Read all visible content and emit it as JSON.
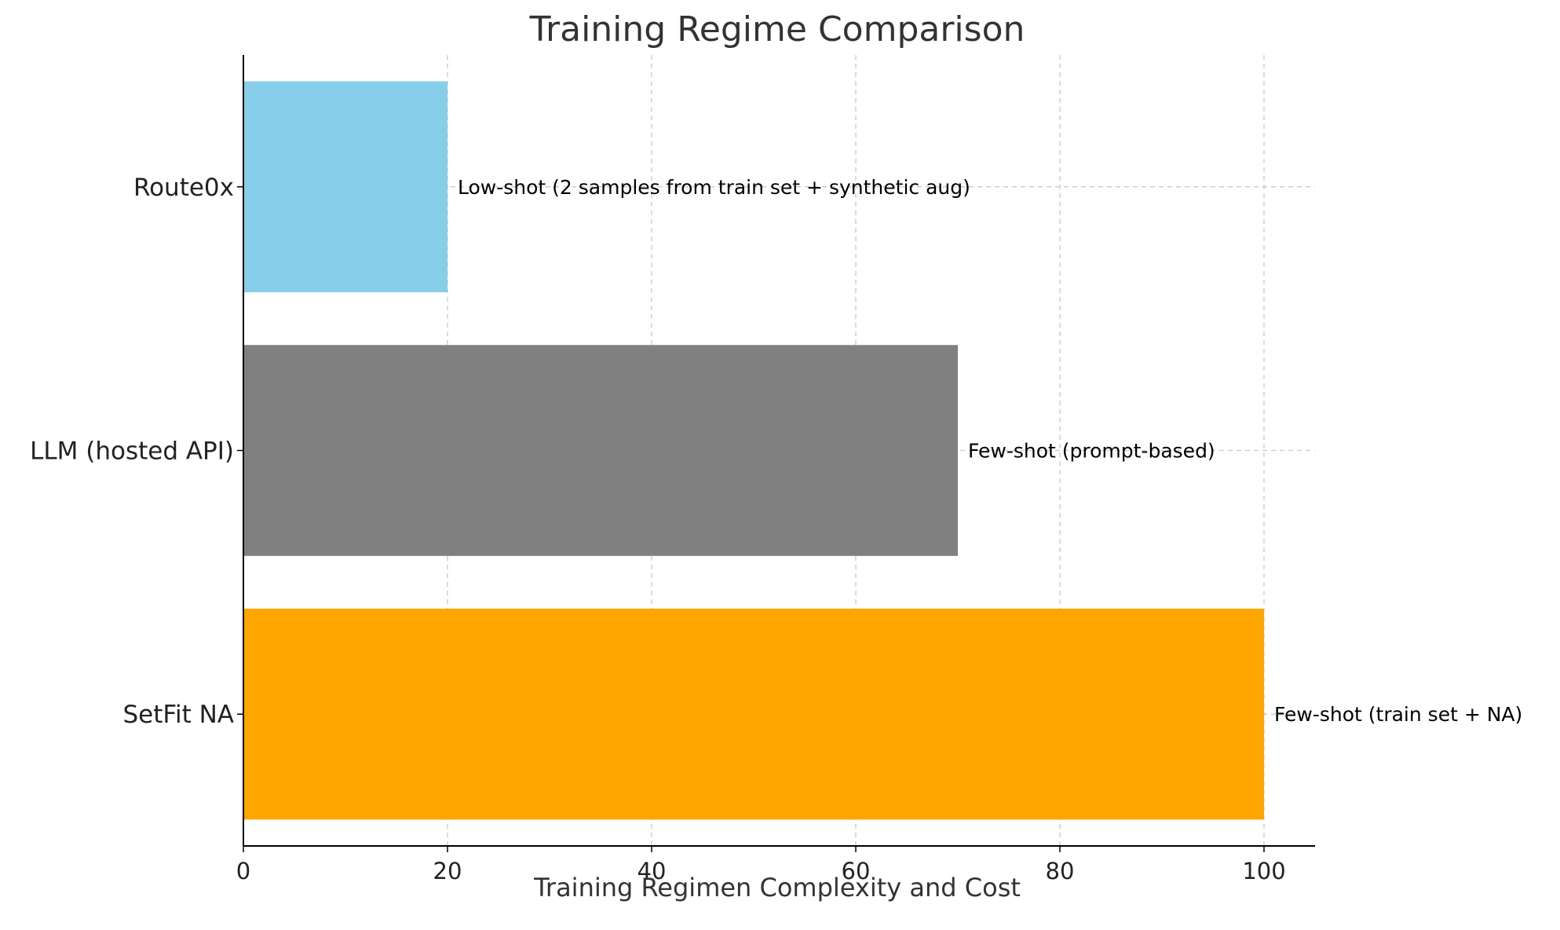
{
  "chart_data": {
    "type": "bar",
    "orientation": "horizontal",
    "title": "Training Regime Comparison",
    "xlabel": "Training Regimen Complexity and Cost",
    "ylabel": "",
    "xlim": [
      0,
      105
    ],
    "x_ticks": [
      0,
      20,
      40,
      60,
      80,
      100
    ],
    "grid": true,
    "categories": [
      "Route0x",
      "LLM (hosted API)",
      "SetFit NA"
    ],
    "values": [
      20,
      70,
      100
    ],
    "colors": [
      "#87ceeb",
      "#808080",
      "#ffa500"
    ],
    "annotations": [
      "Low-shot (2 samples from train set + synthetic aug)",
      "Few-shot (prompt-based)",
      "Few-shot (train set + NA)"
    ]
  }
}
